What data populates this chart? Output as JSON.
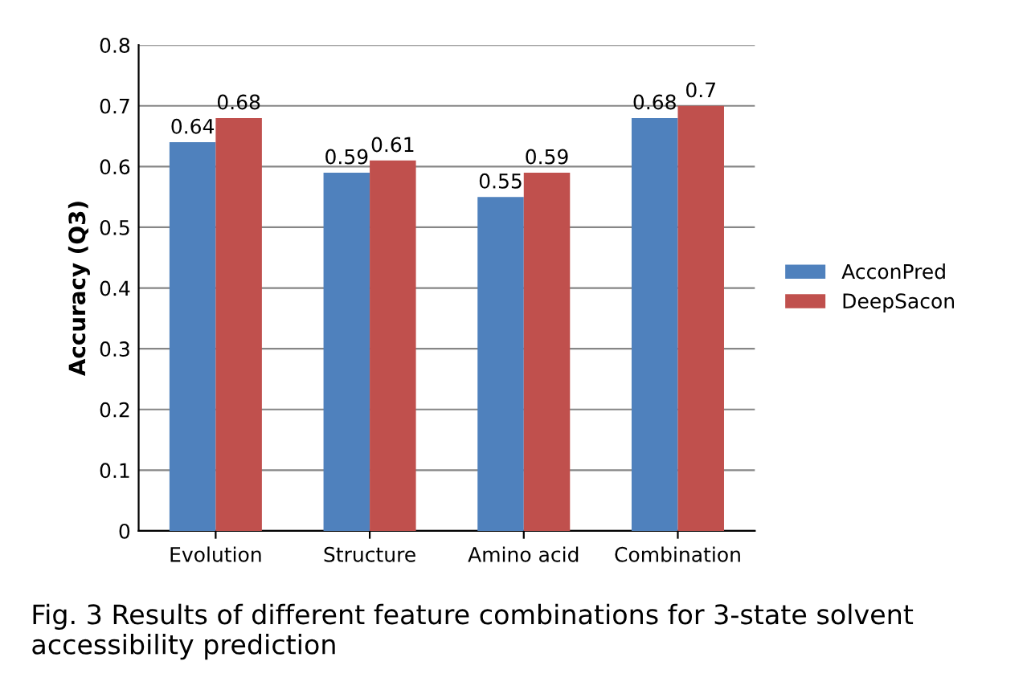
{
  "chart_data": {
    "type": "bar",
    "ylabel": "Accuracy (Q3)",
    "categories": [
      "Evolution",
      "Structure",
      "Amino acid",
      "Combination"
    ],
    "series": [
      {
        "name": "AcconPred",
        "color": "#4f81bd",
        "values": [
          0.64,
          0.59,
          0.55,
          0.68
        ]
      },
      {
        "name": "DeepSacon",
        "color": "#c0504d",
        "values": [
          0.68,
          0.61,
          0.59,
          0.7
        ]
      }
    ],
    "ylim": [
      0,
      0.8
    ],
    "yticks": [
      0,
      0.1,
      0.2,
      0.3,
      0.4,
      0.5,
      0.6,
      0.7,
      0.8
    ],
    "grid": "y",
    "legend": "right",
    "data_labels": true,
    "annotations": [
      "Fig. 3 Results of different feature combinations for 3-state solvent accessibility prediction"
    ]
  }
}
